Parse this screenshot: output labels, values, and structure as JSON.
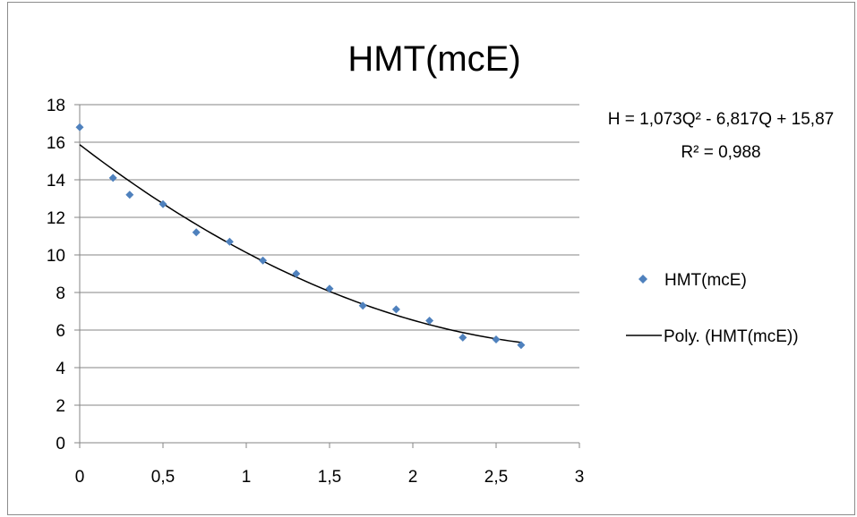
{
  "chart_data": {
    "type": "scatter",
    "title": "HMT(mcE)",
    "xlim": [
      0,
      3
    ],
    "ylim": [
      0,
      18
    ],
    "x_ticks": [
      0,
      0.5,
      1,
      1.5,
      2,
      2.5,
      3
    ],
    "x_tick_labels": [
      "0",
      "0,5",
      "1",
      "1,5",
      "2",
      "2,5",
      "3"
    ],
    "y_ticks": [
      0,
      2,
      4,
      6,
      8,
      10,
      12,
      14,
      16,
      18
    ],
    "y_tick_labels": [
      "0",
      "2",
      "4",
      "6",
      "8",
      "10",
      "12",
      "14",
      "16",
      "18"
    ],
    "grid": "horizontal",
    "legend_position": "right",
    "series": [
      {
        "name": "HMT(mcE)",
        "kind": "points",
        "color": "#4f81bd",
        "x": [
          0,
          0.2,
          0.3,
          0.5,
          0.7,
          0.9,
          1.1,
          1.3,
          1.5,
          1.7,
          1.9,
          2.1,
          2.3,
          2.5,
          2.65
        ],
        "y": [
          16.8,
          14.1,
          13.2,
          12.7,
          11.2,
          10.7,
          9.7,
          9.0,
          8.2,
          7.3,
          7.1,
          6.5,
          5.6,
          5.5,
          5.2
        ]
      },
      {
        "name": "Poly. (HMT(mcE))",
        "kind": "trendline",
        "color": "#000000",
        "polynomial": {
          "a": 1.073,
          "b": -6.817,
          "c": 15.87
        },
        "x_range": [
          0,
          2.65
        ]
      }
    ],
    "annotations": {
      "equation": "H = 1,073Q² - 6,817Q + 15,87",
      "r_squared": "R² = 0,988"
    }
  }
}
